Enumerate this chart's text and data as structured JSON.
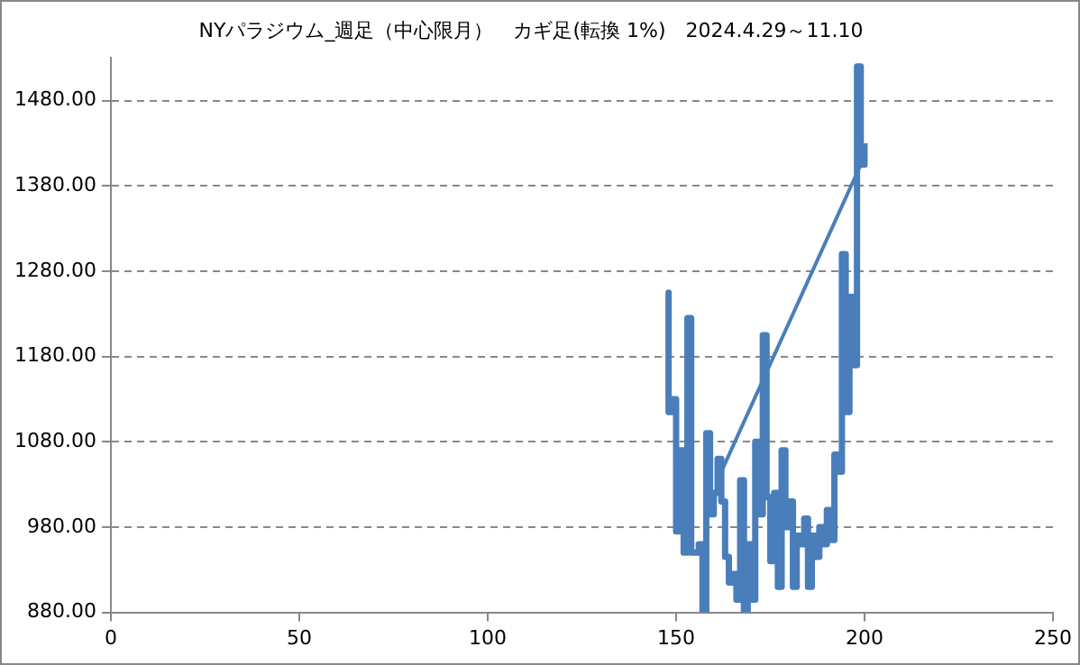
{
  "chart_data": {
    "type": "line",
    "title": "NYパラジウム_週足（中心限月）　カギ足(転換 1%)　2024.4.29～11.10",
    "xlim": [
      0,
      250
    ],
    "xticks": [
      0,
      50,
      100,
      150,
      200,
      250
    ],
    "ylim": [
      880,
      1530
    ],
    "yticks": [
      {
        "value": 880,
        "label": "880.00"
      },
      {
        "value": 980,
        "label": "980.00"
      },
      {
        "value": 1080,
        "label": "1080.00"
      },
      {
        "value": 1180,
        "label": "1180.00"
      },
      {
        "value": 1280,
        "label": "1280.00"
      },
      {
        "value": 1380,
        "label": "1380.00"
      },
      {
        "value": 1480,
        "label": "1480.00"
      }
    ],
    "grid": "y",
    "legend": false,
    "marker": "none",
    "line_style": "solid",
    "series": [
      {
        "color": "#4a7ebb",
        "x": [
          148,
          148,
          149,
          149,
          150,
          150,
          151,
          151,
          152,
          152,
          153,
          153,
          154,
          154,
          156,
          156,
          157,
          157,
          158,
          158,
          159,
          159,
          160,
          160,
          161,
          161,
          162,
          162,
          163,
          163,
          164,
          164,
          165,
          165,
          166,
          166,
          167,
          167,
          168,
          168,
          169,
          169,
          170,
          170,
          171,
          171,
          172,
          172,
          173,
          173,
          174,
          174,
          175,
          175,
          176,
          176,
          177,
          177,
          178,
          178,
          179,
          179,
          180,
          180,
          181,
          181,
          182,
          182,
          183,
          183,
          184,
          184,
          185,
          185,
          186,
          186,
          187,
          187,
          188,
          188,
          189,
          189,
          190,
          190,
          191,
          191,
          192,
          192,
          193,
          193,
          194,
          194,
          195,
          195,
          196,
          196,
          197,
          197,
          198,
          198,
          199,
          199,
          200,
          200
        ],
        "values": [
          1255,
          1115,
          1115,
          1130,
          1130,
          975,
          975,
          1070,
          1070,
          950,
          950,
          1225,
          1225,
          950,
          950,
          960,
          960,
          880,
          880,
          1090,
          1090,
          995,
          995,
          1020,
          1020,
          1060,
          1060,
          1010,
          1010,
          945,
          945,
          915,
          915,
          925,
          925,
          895,
          895,
          1035,
          1035,
          880,
          880,
          960,
          960,
          895,
          895,
          1080,
          1080,
          995,
          995,
          1205,
          1205,
          1015,
          1015,
          940,
          940,
          1020,
          1020,
          910,
          910,
          1070,
          1070,
          980,
          980,
          1010,
          1010,
          910,
          910,
          970,
          970,
          960,
          960,
          990,
          990,
          910,
          910,
          970,
          970,
          945,
          945,
          980,
          980,
          960,
          960,
          1000,
          1000,
          965,
          965,
          1065,
          1065,
          1045,
          1045,
          1300,
          1300,
          1115,
          1115,
          1250,
          1250,
          1170,
          1170,
          1520,
          1520,
          1405,
          1405,
          1430
        ]
      },
      {
        "color": "#4a7ebb",
        "x": [
          162,
          199
        ],
        "values": [
          1045,
          1405
        ]
      }
    ]
  }
}
